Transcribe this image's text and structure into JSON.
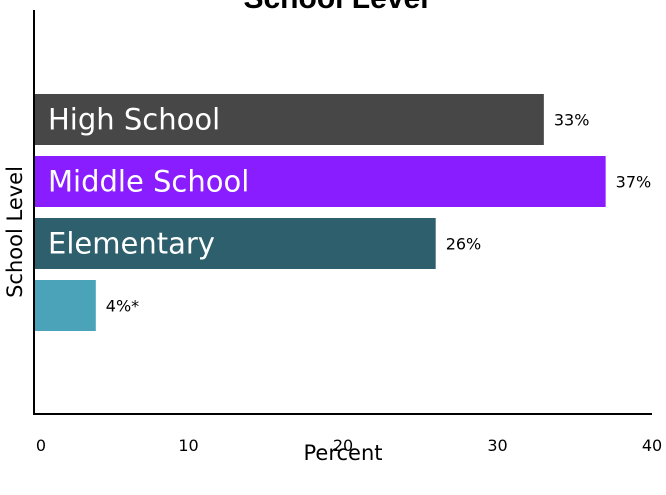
{
  "chart_data": {
    "type": "bar",
    "orientation": "horizontal",
    "title": "School Level",
    "xlabel": "Percent",
    "ylabel": "School Level",
    "xlim": [
      0,
      40
    ],
    "xticks": [
      0,
      10,
      20,
      30,
      40
    ],
    "grid": false,
    "categories": [
      "High School",
      "Middle School",
      "Elementary",
      ""
    ],
    "values": [
      33,
      37,
      26,
      4
    ],
    "value_labels": [
      "33%",
      "37%",
      "26%",
      "4%*"
    ],
    "colors": [
      "#474747",
      "#8A1DFF",
      "#2D5F6C",
      "#4BA3BA"
    ],
    "label_color": "#ffffff"
  }
}
